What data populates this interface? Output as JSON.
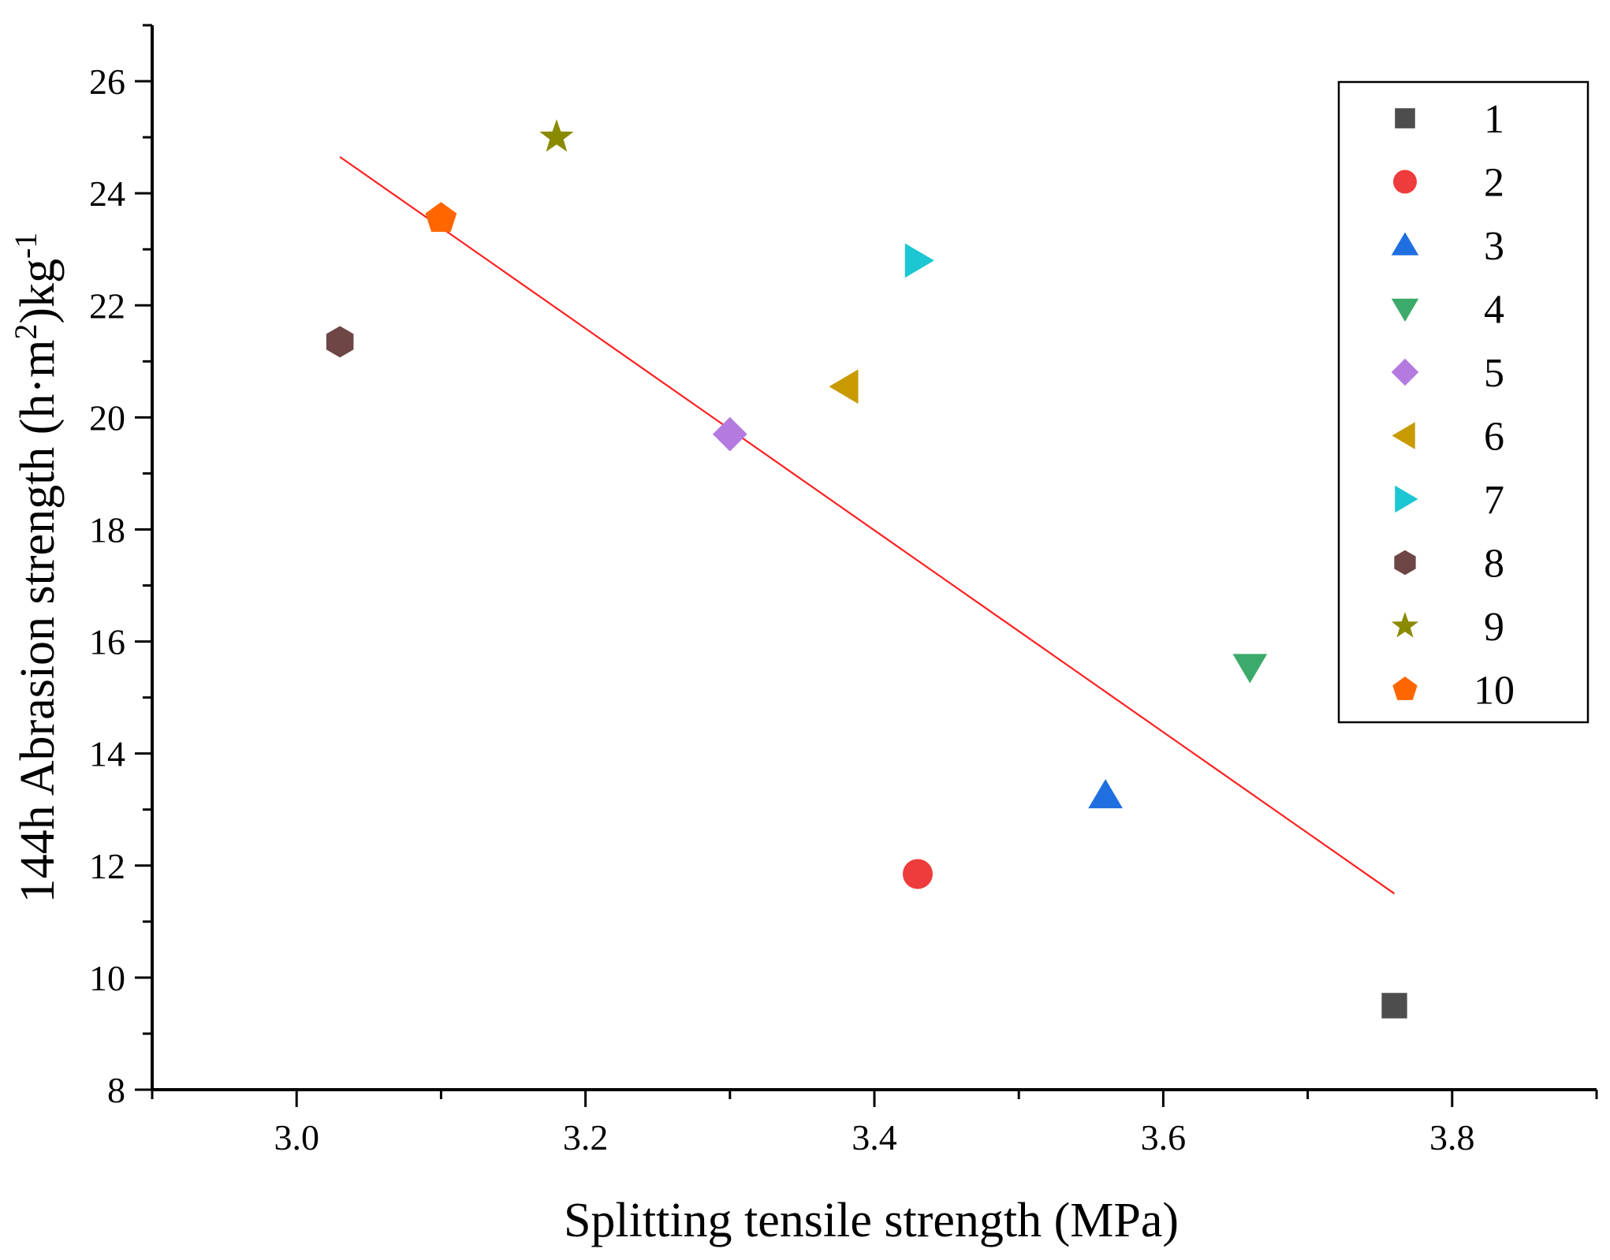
{
  "chart_data": {
    "type": "scatter",
    "title": "",
    "xlabel": "Splitting tensile strength (MPa)",
    "ylabel": {
      "main": "144h Abrasion strength (h·m",
      "sup1": "2",
      "mid": ")kg",
      "sup2": "-1"
    },
    "xlim": [
      2.9,
      3.9
    ],
    "ylim": [
      8,
      27
    ],
    "x_ticks": [
      3.0,
      3.2,
      3.4,
      3.6,
      3.8
    ],
    "x_tick_labels": [
      "3.0",
      "3.2",
      "3.4",
      "3.6",
      "3.8"
    ],
    "y_ticks": [
      8,
      10,
      12,
      14,
      16,
      18,
      20,
      22,
      24,
      26
    ],
    "y_tick_labels": [
      "8",
      "10",
      "12",
      "14",
      "16",
      "18",
      "20",
      "22",
      "24",
      "26"
    ],
    "grid": false,
    "legend_position": "top-right",
    "series": [
      {
        "name": "1",
        "marker": "square",
        "color": "#4d4d4d",
        "x": 3.76,
        "y": 9.5
      },
      {
        "name": "2",
        "marker": "circle",
        "color": "#ee3b3b",
        "x": 3.43,
        "y": 11.85
      },
      {
        "name": "3",
        "marker": "triangle-up",
        "color": "#1f6fe0",
        "x": 3.56,
        "y": 13.25
      },
      {
        "name": "4",
        "marker": "triangle-down",
        "color": "#3caa6a",
        "x": 3.66,
        "y": 15.55
      },
      {
        "name": "5",
        "marker": "diamond",
        "color": "#b57ae0",
        "x": 3.3,
        "y": 19.7
      },
      {
        "name": "6",
        "marker": "triangle-left",
        "color": "#c89a00",
        "x": 3.38,
        "y": 20.55
      },
      {
        "name": "7",
        "marker": "triangle-right",
        "color": "#1cc6d2",
        "x": 3.43,
        "y": 22.8
      },
      {
        "name": "8",
        "marker": "hexagon",
        "color": "#6e4646",
        "x": 3.03,
        "y": 21.35
      },
      {
        "name": "9",
        "marker": "star",
        "color": "#8a8a00",
        "x": 3.18,
        "y": 25.0
      },
      {
        "name": "10",
        "marker": "pentagon",
        "color": "#ff6600",
        "x": 3.1,
        "y": 23.55
      }
    ],
    "fit_line": {
      "color": "#ff2020",
      "x": [
        3.03,
        3.76
      ],
      "y": [
        24.65,
        11.5
      ]
    }
  }
}
